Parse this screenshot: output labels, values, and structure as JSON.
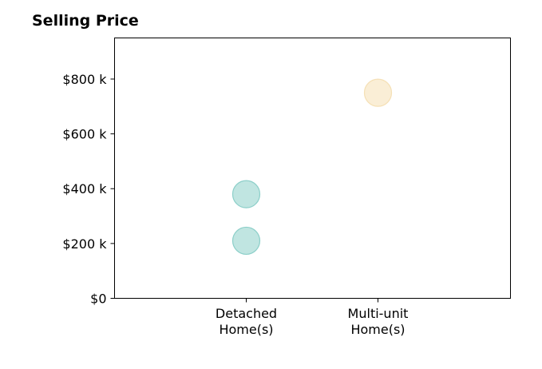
{
  "chart_data": {
    "type": "scatter",
    "title": "Selling Price",
    "xlabel": "",
    "ylabel": "",
    "ylim": [
      0,
      950000
    ],
    "grid": false,
    "categories": [
      [
        "Detached",
        "Home(s)"
      ],
      [
        "Multi-unit",
        "Home(s)"
      ]
    ],
    "y_ticks": [
      {
        "value": 0,
        "label": "$0"
      },
      {
        "value": 200000,
        "label": "$200 k"
      },
      {
        "value": 400000,
        "label": "$400 k"
      },
      {
        "value": 600000,
        "label": "$600 k"
      },
      {
        "value": 800000,
        "label": "$800 k"
      }
    ],
    "points": [
      {
        "category": 0,
        "y": 210000,
        "color": "#8ccfc9"
      },
      {
        "category": 0,
        "y": 380000,
        "color": "#8ccfc9"
      },
      {
        "category": 1,
        "y": 750000,
        "color": "#f5e0b5"
      }
    ]
  }
}
